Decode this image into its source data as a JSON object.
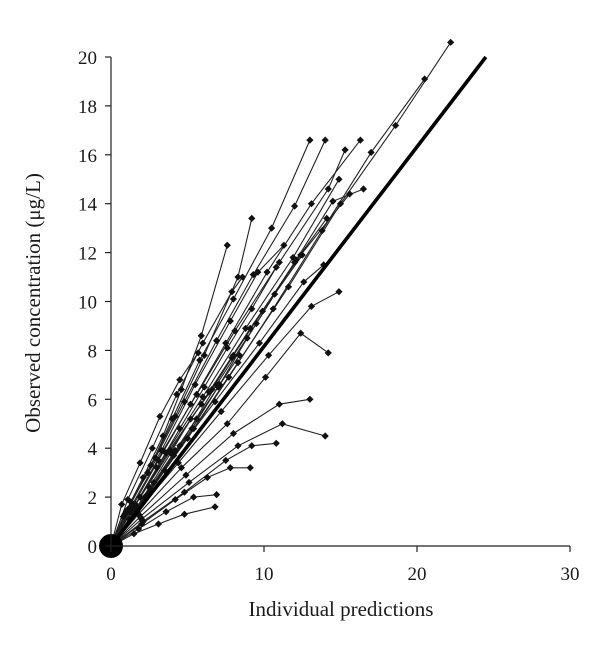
{
  "chart_data": {
    "type": "scatter",
    "title": "",
    "xlabel": "Individual predictions",
    "ylabel": "Observed concentration (μg/L)",
    "xlim": [
      0,
      30
    ],
    "ylim": [
      0,
      20
    ],
    "xticks": [
      "0",
      "10",
      "20",
      "30"
    ],
    "yticks": [
      "0",
      "2",
      "4",
      "6",
      "8",
      "10",
      "12",
      "14",
      "16",
      "18",
      "20"
    ],
    "grid": false,
    "legend": "none",
    "colors": {
      "points": "#111111",
      "lines": "#222222",
      "identity": "#000000",
      "background": "#ffffff"
    },
    "identity_line": {
      "x": [
        0,
        24.5
      ],
      "y": [
        0,
        20
      ]
    },
    "origin_point": {
      "x": 0,
      "y": 0
    },
    "series": [
      {
        "x": [
          0,
          0.8,
          2.1,
          3.4,
          4.6,
          5.9,
          7.6
        ],
        "y": [
          0,
          1.2,
          2.8,
          4.5,
          6.4,
          8.6,
          12.3
        ]
      },
      {
        "x": [
          0,
          1.0,
          2.6,
          4.2,
          6.1,
          8.3,
          9.2
        ],
        "y": [
          0,
          1.4,
          3.3,
          5.3,
          7.8,
          11.0,
          13.4
        ]
      },
      {
        "x": [
          0,
          0.9,
          2.4,
          4.0,
          5.8,
          8.0,
          10.5,
          13.0
        ],
        "y": [
          0,
          1.3,
          3.0,
          5.2,
          7.6,
          10.1,
          13.0,
          16.6
        ]
      },
      {
        "x": [
          0,
          1.1,
          2.9,
          4.8,
          6.9,
          9.3,
          12.0,
          14.0
        ],
        "y": [
          0,
          1.5,
          3.6,
          5.9,
          8.4,
          11.1,
          13.9,
          16.6
        ]
      },
      {
        "x": [
          0,
          1.2,
          3.1,
          5.2,
          7.5,
          10.2,
          13.1,
          16.3
        ],
        "y": [
          0,
          1.4,
          3.5,
          5.8,
          8.3,
          11.2,
          14.0,
          16.6
        ]
      },
      {
        "x": [
          0,
          1.3,
          3.4,
          5.6,
          8.1,
          11.0,
          14.2,
          15.3
        ],
        "y": [
          0,
          1.6,
          3.9,
          6.2,
          8.8,
          11.6,
          14.6,
          16.2
        ]
      },
      {
        "x": [
          0,
          1.4,
          3.6,
          6.0,
          8.8,
          11.9,
          14.9
        ],
        "y": [
          0,
          1.5,
          3.8,
          6.1,
          8.9,
          11.8,
          15.0
        ]
      },
      {
        "x": [
          0,
          1.5,
          3.9,
          6.4,
          9.1,
          12.4,
          15.6
        ],
        "y": [
          0,
          1.6,
          3.9,
          6.3,
          8.9,
          11.9,
          14.4
        ]
      },
      {
        "x": [
          0,
          1.6,
          4.1,
          6.8,
          9.7,
          12.6,
          13.9
        ],
        "y": [
          0,
          1.5,
          3.7,
          5.9,
          8.3,
          10.8,
          11.5
        ]
      },
      {
        "x": [
          0,
          1.7,
          4.4,
          7.2,
          10.3,
          13.1,
          14.9
        ],
        "y": [
          0,
          1.4,
          3.4,
          5.5,
          7.8,
          9.8,
          10.4
        ]
      },
      {
        "x": [
          0,
          1.8,
          4.6,
          7.6,
          10.1,
          12.4,
          14.2
        ],
        "y": [
          0,
          1.3,
          3.2,
          5.0,
          6.9,
          8.7,
          7.9
        ]
      },
      {
        "x": [
          0,
          1.9,
          4.9,
          8.0,
          11.0,
          13.0
        ],
        "y": [
          0,
          1.2,
          2.9,
          4.6,
          5.8,
          6.0
        ]
      },
      {
        "x": [
          0,
          2.0,
          5.1,
          8.3,
          11.2,
          14.0
        ],
        "y": [
          0,
          1.1,
          2.6,
          4.1,
          5.0,
          4.5
        ]
      },
      {
        "x": [
          0,
          2.1,
          4.8,
          7.5,
          9.2,
          10.8
        ],
        "y": [
          0,
          1.0,
          2.2,
          3.5,
          4.1,
          4.2
        ]
      },
      {
        "x": [
          0,
          2.0,
          4.2,
          6.3,
          7.8,
          9.1
        ],
        "y": [
          0,
          0.9,
          1.9,
          2.8,
          3.2,
          3.2
        ]
      },
      {
        "x": [
          0,
          1.8,
          3.6,
          5.4,
          6.9
        ],
        "y": [
          0,
          0.7,
          1.4,
          2.0,
          2.1
        ]
      },
      {
        "x": [
          0,
          1.5,
          3.1,
          4.8,
          6.8
        ],
        "y": [
          0,
          0.5,
          0.9,
          1.3,
          1.6
        ]
      },
      {
        "x": [
          0,
          0.7,
          1.9,
          3.2,
          4.5,
          5.7
        ],
        "y": [
          0,
          1.7,
          3.4,
          5.3,
          6.8,
          7.9
        ]
      },
      {
        "x": [
          0,
          1.1,
          2.7,
          4.3,
          6.0,
          7.9,
          8.6
        ],
        "y": [
          0,
          1.9,
          4.0,
          6.2,
          8.3,
          10.4,
          11.0
        ]
      },
      {
        "x": [
          0,
          1.3,
          3.3,
          5.5,
          7.8,
          9.6,
          11.3
        ],
        "y": [
          0,
          1.8,
          3.9,
          6.6,
          9.2,
          11.2,
          12.3
        ]
      },
      {
        "x": [
          0,
          2.2,
          4.5,
          6.9,
          9.5,
          12.1,
          14.5,
          16.5
        ],
        "y": [
          0,
          2.0,
          4.1,
          6.6,
          9.1,
          11.7,
          14.1,
          14.6
        ]
      },
      {
        "x": [
          0,
          2.4,
          5.0,
          7.7,
          10.6,
          13.8,
          17.0,
          20.5
        ],
        "y": [
          0,
          2.1,
          4.4,
          6.9,
          9.7,
          12.9,
          16.1,
          19.1
        ]
      },
      {
        "x": [
          0,
          2.6,
          5.4,
          8.3,
          11.6,
          15.0,
          18.6,
          22.2
        ],
        "y": [
          0,
          2.3,
          4.8,
          7.5,
          10.6,
          14.0,
          17.2,
          20.6
        ]
      },
      {
        "x": [
          0,
          1.9,
          3.8,
          5.9,
          7.9,
          9.9,
          12.0,
          14.1
        ],
        "y": [
          0,
          2.0,
          3.9,
          5.8,
          7.7,
          9.6,
          11.6,
          13.4
        ]
      },
      {
        "x": [
          0,
          1.2,
          2.5,
          3.9,
          5.2,
          6.6,
          8.0
        ],
        "y": [
          0,
          1.1,
          2.4,
          3.8,
          5.2,
          6.4,
          7.8
        ]
      },
      {
        "x": [
          0,
          1.6,
          3.0,
          4.5,
          6.1,
          7.6,
          9.2,
          10.8
        ],
        "y": [
          0,
          1.7,
          3.2,
          4.8,
          6.5,
          8.1,
          9.7,
          11.4
        ]
      },
      {
        "x": [
          0,
          1.4,
          2.8,
          4.2,
          5.6,
          7.0,
          8.4
        ],
        "y": [
          0,
          1.3,
          2.6,
          3.9,
          5.2,
          6.5,
          7.8
        ]
      },
      {
        "x": [
          0,
          1.7,
          3.5,
          5.3,
          7.1,
          8.9,
          10.7,
          12.5
        ],
        "y": [
          0,
          1.5,
          3.1,
          4.8,
          6.6,
          8.5,
          10.3,
          11.9
        ]
      }
    ]
  }
}
